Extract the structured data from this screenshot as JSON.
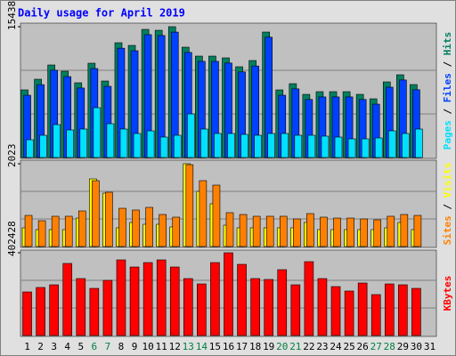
{
  "chart_data": {
    "type": "bar",
    "title": "Daily usage for April 2019",
    "title_color": "#0000ff",
    "categories": [
      "1",
      "2",
      "3",
      "4",
      "5",
      "6",
      "7",
      "8",
      "9",
      "10",
      "11",
      "12",
      "13",
      "14",
      "15",
      "16",
      "17",
      "18",
      "19",
      "20",
      "21",
      "22",
      "23",
      "24",
      "25",
      "26",
      "27",
      "28",
      "29",
      "30",
      "31"
    ],
    "category_colors": [
      "#000000",
      "#000000",
      "#000000",
      "#000000",
      "#000000",
      "#008040",
      "#008040",
      "#000000",
      "#000000",
      "#000000",
      "#000000",
      "#000000",
      "#008040",
      "#008040",
      "#000000",
      "#000000",
      "#000000",
      "#000000",
      "#000000",
      "#008040",
      "#008040",
      "#000000",
      "#000000",
      "#000000",
      "#000000",
      "#000000",
      "#008040",
      "#008040",
      "#000000",
      "#000000",
      "#000000"
    ],
    "legend_separator": " / ",
    "grid_lines": 2,
    "panels": [
      {
        "ylim": [
          0,
          15438
        ],
        "yticks": [
          15438
        ],
        "series": [
          {
            "name": "Hits",
            "color": "#008060",
            "values": [
              7980,
              9240,
              10920,
              10185,
              8820,
              11130,
              9030,
              13545,
              13230,
              15120,
              15015,
              15438,
              13020,
              11970,
              11970,
              11760,
              10710,
              11445,
              14805,
              7980,
              8715,
              7455,
              7770,
              7770,
              7770,
              7455,
              6930,
              8925,
              9765,
              8610,
              0
            ]
          },
          {
            "name": "Files",
            "color": "#0040ff",
            "values": [
              7350,
              8600,
              10300,
              9550,
              8200,
              10500,
              8400,
              12900,
              12600,
              14500,
              14400,
              14800,
              12400,
              11350,
              11350,
              11150,
              10100,
              10800,
              14200,
              7350,
              8100,
              6850,
              7150,
              7150,
              7150,
              6850,
              6300,
              8300,
              9150,
              8000,
              0
            ]
          },
          {
            "name": "Pages",
            "color": "#00e0ff",
            "values": [
              2100,
              2625,
              3885,
              3255,
              3360,
              5880,
              3990,
              3360,
              2835,
              3150,
              2415,
              2625,
              5145,
              3360,
              2835,
              2835,
              2730,
              2625,
              2835,
              2835,
              2625,
              2625,
              2520,
              2415,
              2205,
              2205,
              2310,
              3150,
              2835,
              3360,
              0
            ]
          }
        ]
      },
      {
        "ylim": [
          0,
          2023
        ],
        "yticks": [
          2023
        ],
        "series": [
          {
            "name": "Visits",
            "color": "#ffff00",
            "values": [
              457,
              413,
              413,
              413,
              696,
              1653,
              1305,
              457,
              587,
              544,
              544,
              479,
              2023,
              1349,
              1044,
              522,
              457,
              457,
              457,
              457,
              457,
              587,
              413,
              413,
              413,
              413,
              413,
              457,
              587,
              413,
              0
            ]
          },
          {
            "name": "Sites",
            "color": "#ff8000",
            "values": [
              761,
              631,
              740,
              740,
              870,
              1610,
              1327,
              935,
              892,
              957,
              783,
              718,
              2000,
              1610,
              1501,
              827,
              783,
              740,
              740,
              740,
              674,
              805,
              718,
              696,
              696,
              674,
              653,
              740,
              783,
              761,
              0
            ]
          }
        ]
      },
      {
        "ylim": [
          0,
          402428
        ],
        "yticks": [
          402428
        ],
        "series": [
          {
            "name": "KBytes",
            "color": "#ff0000",
            "values": [
              212023,
              233658,
              246639,
              350487,
              276928,
              229331,
              268274,
              367795,
              333179,
              354814,
              367795,
              333179,
              276928,
              250966,
              354814,
              402428,
              346160,
              276928,
              272601,
              320198,
              246639,
              359141,
              276928,
              237985,
              216350,
              255293,
              199042,
              250966,
              246639,
              229331,
              0
            ]
          }
        ]
      }
    ]
  }
}
